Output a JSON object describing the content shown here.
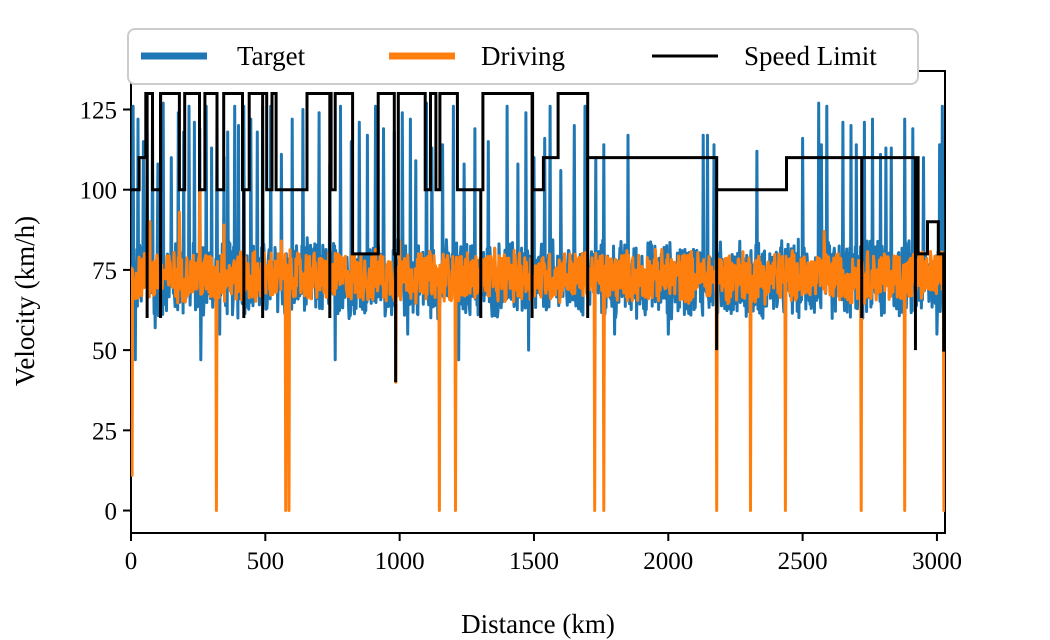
{
  "chart_data": {
    "type": "line",
    "title": "",
    "xlabel": "Distance (km)",
    "ylabel": "Velocity (km/h)",
    "xlim": [
      0,
      3030
    ],
    "ylim": [
      -7,
      137
    ],
    "xticks": [
      0,
      500,
      1000,
      1500,
      2000,
      2500,
      3000
    ],
    "xtick_labels": [
      "0",
      "500",
      "1000",
      "1500",
      "2000",
      "2500",
      "3000"
    ],
    "yticks": [
      0,
      25,
      50,
      75,
      100,
      125
    ],
    "ytick_labels": [
      "0",
      "25",
      "50",
      "75",
      "100",
      "125"
    ],
    "grid": false,
    "legend_position": "top",
    "series": [
      {
        "name": "Target",
        "color": "#1f77b4",
        "baseline": 72,
        "noise_band": [
          58,
          85
        ],
        "spikes": [
          [
            8,
            126
          ],
          [
            25,
            122
          ],
          [
            45,
            115
          ],
          [
            60,
            118
          ],
          [
            80,
            125
          ],
          [
            100,
            108
          ],
          [
            120,
            127
          ],
          [
            150,
            110
          ],
          [
            175,
            124
          ],
          [
            195,
            118
          ],
          [
            215,
            126
          ],
          [
            235,
            121
          ],
          [
            255,
            119
          ],
          [
            280,
            126
          ],
          [
            300,
            113
          ],
          [
            320,
            125
          ],
          [
            345,
            110
          ],
          [
            360,
            118
          ],
          [
            385,
            126
          ],
          [
            400,
            120
          ],
          [
            420,
            126
          ],
          [
            445,
            122
          ],
          [
            470,
            118
          ],
          [
            490,
            126
          ],
          [
            520,
            126
          ],
          [
            560,
            111
          ],
          [
            600,
            122
          ],
          [
            640,
            125
          ],
          [
            700,
            124
          ],
          [
            740,
            108
          ],
          [
            780,
            126
          ],
          [
            820,
            115
          ],
          [
            850,
            121
          ],
          [
            880,
            117
          ],
          [
            910,
            126
          ],
          [
            940,
            119
          ],
          [
            980,
            118
          ],
          [
            1010,
            124
          ],
          [
            1040,
            122
          ],
          [
            1060,
            109
          ],
          [
            1100,
            127
          ],
          [
            1120,
            113
          ],
          [
            1160,
            114
          ],
          [
            1200,
            126
          ],
          [
            1240,
            108
          ],
          [
            1280,
            119
          ],
          [
            1330,
            115
          ],
          [
            1400,
            126
          ],
          [
            1440,
            108
          ],
          [
            1470,
            124
          ],
          [
            1500,
            110
          ],
          [
            1540,
            116
          ],
          [
            1560,
            126
          ],
          [
            1600,
            106
          ],
          [
            1650,
            120
          ],
          [
            1690,
            126
          ],
          [
            1730,
            110
          ],
          [
            1760,
            114
          ],
          [
            1850,
            117
          ],
          [
            2130,
            117
          ],
          [
            2145,
            117
          ],
          [
            2170,
            114
          ],
          [
            2330,
            112
          ],
          [
            2500,
            116
          ],
          [
            2560,
            127
          ],
          [
            2570,
            114
          ],
          [
            2590,
            126
          ],
          [
            2650,
            121
          ],
          [
            2680,
            120
          ],
          [
            2700,
            114
          ],
          [
            2730,
            121
          ],
          [
            2760,
            122
          ],
          [
            2790,
            111
          ],
          [
            2810,
            113
          ],
          [
            2830,
            113
          ],
          [
            2880,
            122
          ],
          [
            2910,
            119
          ],
          [
            2950,
            110
          ],
          [
            3010,
            114
          ],
          [
            3020,
            126
          ]
        ],
        "dips": [
          [
            15,
            47
          ],
          [
            90,
            57
          ],
          [
            260,
            47
          ],
          [
            330,
            55
          ],
          [
            520,
            55
          ],
          [
            760,
            47
          ],
          [
            1030,
            55
          ],
          [
            1220,
            47
          ],
          [
            1480,
            50
          ],
          [
            1800,
            55
          ],
          [
            2000,
            55
          ],
          [
            2170,
            55
          ],
          [
            2570,
            47
          ],
          [
            2700,
            55
          ],
          [
            3000,
            55
          ]
        ]
      },
      {
        "name": "Driving",
        "color": "#ff7f0e",
        "baseline": 73,
        "noise_band": [
          62,
          80
        ],
        "spikes": [
          [
            70,
            90
          ],
          [
            180,
            93
          ],
          [
            255,
            102
          ],
          [
            345,
            89
          ],
          [
            560,
            84
          ],
          [
            1000,
            84
          ],
          [
            2580,
            87
          ]
        ],
        "drops_to_zero": [
          [
            3,
            11
          ],
          [
            318,
            0
          ],
          [
            575,
            0
          ],
          [
            587,
            0
          ],
          [
            985,
            40
          ],
          [
            1148,
            0
          ],
          [
            1208,
            0
          ],
          [
            1725,
            0
          ],
          [
            1760,
            0
          ],
          [
            2180,
            0
          ],
          [
            2305,
            0
          ],
          [
            2435,
            0
          ],
          [
            2718,
            0
          ],
          [
            2880,
            0
          ],
          [
            3025,
            0
          ]
        ]
      },
      {
        "name": "Speed Limit",
        "color": "#000000",
        "steps": [
          [
            0,
            100
          ],
          [
            30,
            110
          ],
          [
            55,
            130
          ],
          [
            80,
            100
          ],
          [
            110,
            130
          ],
          [
            180,
            100
          ],
          [
            200,
            130
          ],
          [
            255,
            100
          ],
          [
            275,
            130
          ],
          [
            320,
            100
          ],
          [
            345,
            130
          ],
          [
            415,
            100
          ],
          [
            440,
            130
          ],
          [
            505,
            100
          ],
          [
            525,
            130
          ],
          [
            540,
            100
          ],
          [
            640,
            100
          ],
          [
            655,
            130
          ],
          [
            700,
            130
          ],
          [
            745,
            100
          ],
          [
            760,
            130
          ],
          [
            825,
            80
          ],
          [
            920,
            130
          ],
          [
            980,
            80
          ],
          [
            995,
            130
          ],
          [
            1095,
            100
          ],
          [
            1115,
            130
          ],
          [
            1135,
            100
          ],
          [
            1150,
            130
          ],
          [
            1215,
            100
          ],
          [
            1310,
            130
          ],
          [
            1400,
            130
          ],
          [
            1495,
            100
          ],
          [
            1535,
            110
          ],
          [
            1590,
            130
          ],
          [
            1700,
            110
          ],
          [
            1790,
            110
          ],
          [
            2180,
            100
          ],
          [
            2440,
            110
          ],
          [
            2560,
            110
          ],
          [
            2720,
            110
          ],
          [
            2915,
            110
          ],
          [
            2930,
            80
          ],
          [
            2965,
            90
          ],
          [
            3005,
            80
          ],
          [
            3025,
            50
          ]
        ],
        "drops": [
          [
            60,
            60
          ],
          [
            110,
            60
          ],
          [
            420,
            60
          ],
          [
            490,
            60
          ],
          [
            740,
            60
          ],
          [
            985,
            40
          ],
          [
            1302,
            60
          ],
          [
            1493,
            60
          ],
          [
            1700,
            60
          ],
          [
            2180,
            50
          ],
          [
            2720,
            60
          ],
          [
            2920,
            50
          ],
          [
            3025,
            50
          ]
        ]
      }
    ]
  }
}
